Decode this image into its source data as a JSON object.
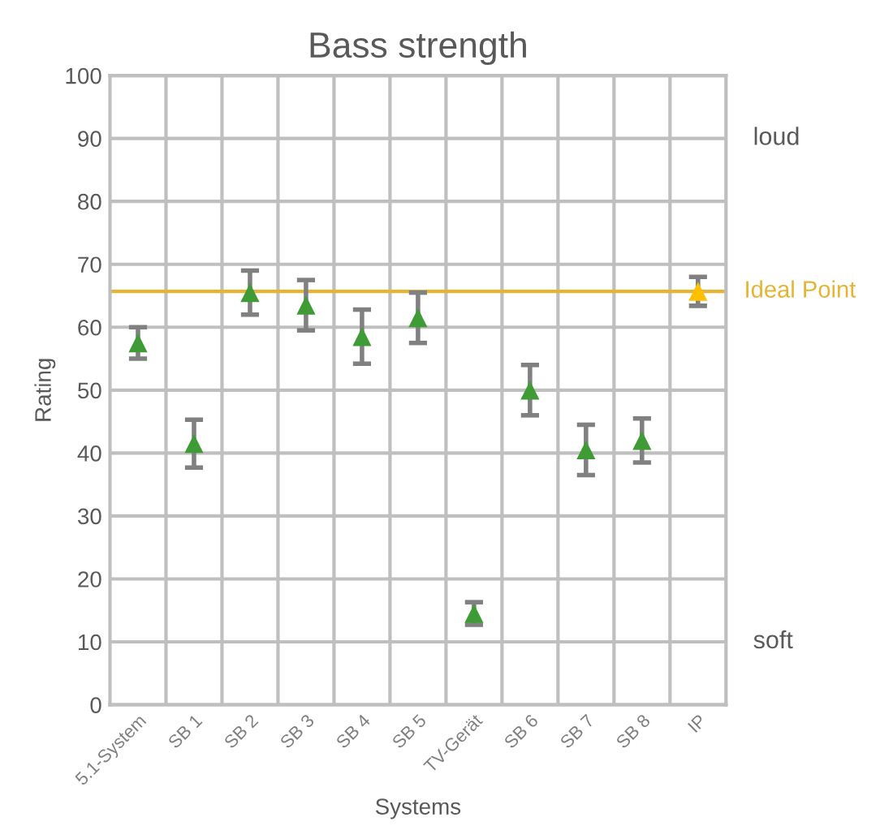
{
  "chart_data": {
    "type": "scatter",
    "title": "Bass strength",
    "xlabel": "Systems",
    "ylabel": "Rating",
    "categories": [
      "5.1-System",
      "SB 1",
      "SB 2",
      "SB 3",
      "SB 4",
      "SB 5",
      "TV-Gerät",
      "SB 6",
      "SB 7",
      "SB 8",
      "IP"
    ],
    "values": [
      57.5,
      41.5,
      65.5,
      63.5,
      58.5,
      61.5,
      14.5,
      50,
      40.5,
      42,
      65.7
    ],
    "errors": [
      2.5,
      3.8,
      3.5,
      4,
      4.3,
      4,
      1.8,
      4,
      4,
      3.5,
      2.3
    ],
    "colors": [
      "#3f9b35",
      "#3f9b35",
      "#3f9b35",
      "#3f9b35",
      "#3f9b35",
      "#3f9b35",
      "#3f9b35",
      "#3f9b35",
      "#3f9b35",
      "#3f9b35",
      "#ffc000"
    ],
    "marker": "triangle",
    "ylim": [
      0,
      100
    ],
    "yticks": [
      0,
      10,
      20,
      30,
      40,
      50,
      60,
      70,
      80,
      90,
      100
    ],
    "annotations": [
      "loud",
      "soft"
    ],
    "ref_lines": [
      {
        "axis": "y",
        "value": 65.7,
        "label": "Ideal Point",
        "color": "#e6b432"
      }
    ],
    "grid": true
  }
}
